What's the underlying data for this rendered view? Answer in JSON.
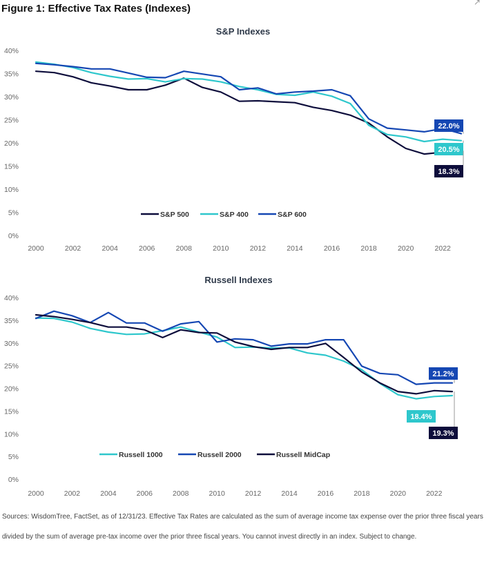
{
  "figure_title": "Figure 1: Effective Tax Rates (Indexes)",
  "corner_icon": "resize-handle-icon",
  "source_note": "Sources: WisdomTree, FactSet, as of 12/31/23. Effective Tax Rates are calculated as the sum of average income tax expense over the prior three fiscal years divided by the sum of average pre-tax income over the prior three fiscal years. You cannot invest directly in an index. Subject to change.",
  "chart_data": [
    {
      "type": "line",
      "title": "S&P Indexes",
      "xlabel": "",
      "ylabel": "",
      "x": [
        2000,
        2001,
        2002,
        2003,
        2004,
        2005,
        2006,
        2007,
        2008,
        2009,
        2010,
        2011,
        2012,
        2013,
        2014,
        2015,
        2016,
        2017,
        2018,
        2019,
        2020,
        2021,
        2022,
        2023
      ],
      "x_ticks": [
        2000,
        2002,
        2004,
        2006,
        2008,
        2010,
        2012,
        2014,
        2016,
        2018,
        2020,
        2022
      ],
      "y_ticks": [
        "0%",
        "5%",
        "10%",
        "15%",
        "20%",
        "25%",
        "30%",
        "35%",
        "40%"
      ],
      "xlim": [
        2000,
        2023
      ],
      "ylim": [
        0,
        40
      ],
      "grid": false,
      "legend": "inside-bottom-center",
      "series": [
        {
          "name": "S&P 500",
          "color": "#0d0d3b",
          "values": [
            35.5,
            35.2,
            34.3,
            33.0,
            32.3,
            31.5,
            31.5,
            32.5,
            34.0,
            32.0,
            31.0,
            29.0,
            29.1,
            28.9,
            28.7,
            27.7,
            27.0,
            26.0,
            24.3,
            21.3,
            18.8,
            17.6,
            18.0,
            18.3
          ]
        },
        {
          "name": "S&P 400",
          "color": "#2ec7cc",
          "values": [
            37.5,
            37.0,
            36.3,
            35.2,
            34.4,
            33.8,
            33.9,
            33.2,
            33.9,
            33.8,
            33.2,
            32.2,
            31.5,
            30.5,
            30.3,
            31.0,
            30.1,
            28.5,
            23.8,
            21.8,
            21.3,
            20.3,
            20.8,
            20.5
          ]
        },
        {
          "name": "S&P 600",
          "color": "#1547b3",
          "values": [
            37.2,
            36.9,
            36.5,
            36.0,
            36.0,
            35.1,
            34.2,
            34.1,
            35.5,
            34.9,
            34.3,
            31.5,
            31.9,
            30.6,
            31.0,
            31.2,
            31.5,
            30.2,
            25.2,
            23.2,
            22.8,
            22.4,
            23.1,
            22.0
          ]
        }
      ],
      "annotations": [
        {
          "text": "22.0%",
          "series": "S&P 600",
          "y_value": 22.0,
          "bg": "#1547b3"
        },
        {
          "text": "20.5%",
          "series": "S&P 400",
          "y_value": 20.5,
          "bg": "#2ec7cc"
        },
        {
          "text": "18.3%",
          "series": "S&P 500",
          "y_value": 18.3,
          "bg": "#0d0d3b"
        }
      ]
    },
    {
      "type": "line",
      "title": "Russell Indexes",
      "xlabel": "",
      "ylabel": "",
      "x": [
        2000,
        2001,
        2002,
        2003,
        2004,
        2005,
        2006,
        2007,
        2008,
        2009,
        2010,
        2011,
        2012,
        2013,
        2014,
        2015,
        2016,
        2017,
        2018,
        2019,
        2020,
        2021,
        2022,
        2023
      ],
      "x_ticks": [
        2000,
        2002,
        2004,
        2006,
        2008,
        2010,
        2012,
        2014,
        2016,
        2018,
        2020,
        2022
      ],
      "y_ticks": [
        "0%",
        "5%",
        "10%",
        "15%",
        "20%",
        "25%",
        "30%",
        "35%",
        "40%"
      ],
      "xlim": [
        2000,
        2023
      ],
      "ylim": [
        0,
        40
      ],
      "grid": false,
      "legend": "inside-bottom-center",
      "series": [
        {
          "name": "Russell 1000",
          "color": "#2ec7cc",
          "values": [
            35.5,
            35.4,
            34.6,
            33.2,
            32.4,
            31.9,
            32.0,
            32.7,
            33.5,
            32.4,
            31.3,
            29.0,
            29.1,
            28.9,
            28.9,
            27.8,
            27.3,
            26.0,
            24.1,
            21.1,
            18.6,
            17.7,
            18.2,
            18.4
          ]
        },
        {
          "name": "Russell 2000",
          "color": "#1547b3",
          "values": [
            35.4,
            37.0,
            36.0,
            34.5,
            36.7,
            34.4,
            34.4,
            32.6,
            34.2,
            34.7,
            30.2,
            30.9,
            30.7,
            29.3,
            29.8,
            29.8,
            30.7,
            30.7,
            24.9,
            23.3,
            23.0,
            20.9,
            21.2,
            21.2
          ]
        },
        {
          "name": "Russell MidCap",
          "color": "#0d0d3b",
          "values": [
            36.2,
            35.8,
            35.2,
            34.5,
            33.5,
            33.5,
            32.9,
            31.2,
            32.9,
            32.3,
            32.2,
            30.2,
            29.2,
            28.6,
            29.0,
            29.0,
            29.9,
            26.8,
            23.6,
            21.2,
            19.3,
            18.8,
            19.5,
            19.3
          ]
        }
      ],
      "annotations": [
        {
          "text": "21.2%",
          "series": "Russell 2000",
          "y_value": 21.2,
          "bg": "#1547b3"
        },
        {
          "text": "18.4%",
          "series": "Russell 1000",
          "y_value": 18.4,
          "bg": "#2ec7cc"
        },
        {
          "text": "19.3%",
          "series": "Russell MidCap",
          "y_value": 19.3,
          "bg": "#0d0d3b"
        }
      ]
    }
  ]
}
